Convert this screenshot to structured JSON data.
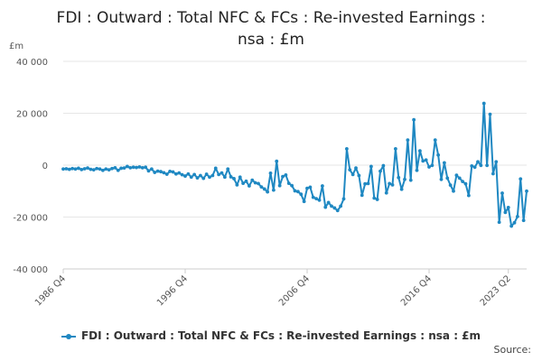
{
  "chart_data": {
    "type": "line",
    "title_line1": "FDI : Outward : Total NFC & FCs : Re-invested Earnings :",
    "title_line2": "nsa : £m",
    "unit_label": "£m",
    "ylim": [
      -40000,
      40000
    ],
    "y_ticks": [
      40000,
      20000,
      0,
      -20000,
      -40000
    ],
    "y_tick_labels": [
      "40 000",
      "20 000",
      "0",
      "-20 000",
      "-40 000"
    ],
    "x_ticks": [
      {
        "index": 0,
        "label": "1986 Q4"
      },
      {
        "index": 40,
        "label": "1996 Q4"
      },
      {
        "index": 80,
        "label": "2006 Q4"
      },
      {
        "index": 120,
        "label": "2016 Q4"
      },
      {
        "index": 146,
        "label": "2023 Q2"
      }
    ],
    "grid": true,
    "series": [
      {
        "name": "FDI : Outward : Total NFC & FCs : Re-invested Earnings : nsa : £m",
        "color": "#1f88c2",
        "start": "1986 Q4",
        "values": [
          -1500,
          -1400,
          -1600,
          -1300,
          -1500,
          -1200,
          -1700,
          -1400,
          -1100,
          -1600,
          -1800,
          -1300,
          -1500,
          -2000,
          -1500,
          -1800,
          -1300,
          -1000,
          -2000,
          -1200,
          -1100,
          -500,
          -1000,
          -800,
          -900,
          -700,
          -1000,
          -800,
          -2200,
          -1500,
          -2800,
          -2300,
          -2500,
          -2900,
          -3500,
          -2400,
          -2600,
          -3400,
          -3000,
          -3700,
          -4200,
          -3400,
          -4600,
          -3600,
          -4900,
          -4000,
          -5100,
          -3500,
          -4600,
          -4000,
          -1200,
          -3600,
          -3000,
          -4600,
          -1500,
          -4500,
          -5200,
          -7600,
          -4600,
          -7000,
          -6200,
          -8000,
          -5800,
          -6800,
          -7100,
          -8400,
          -9200,
          -10300,
          -3100,
          -9600,
          1500,
          -7900,
          -4400,
          -3800,
          -7000,
          -7900,
          -9900,
          -10200,
          -11200,
          -14000,
          -8900,
          -8500,
          -12400,
          -12900,
          -13500,
          -8000,
          -16200,
          -14400,
          -15800,
          -16500,
          -17500,
          -15800,
          -13000,
          6300,
          -1800,
          -3600,
          -1100,
          -4000,
          -11600,
          -7200,
          -7100,
          -500,
          -12700,
          -13200,
          -2300,
          -200,
          -10700,
          -7100,
          -7600,
          6300,
          -4800,
          -9300,
          -5500,
          9700,
          -5800,
          17500,
          -2000,
          5500,
          1600,
          2000,
          -700,
          -100,
          9700,
          3900,
          -5500,
          900,
          -5000,
          -7700,
          -10000,
          -3900,
          -5000,
          -6300,
          -7200,
          -11700,
          -300,
          -800,
          1300,
          -100,
          23800,
          -100,
          19600,
          -3300,
          1300,
          -22000,
          -10800,
          -18200,
          -16300,
          -23500,
          -22200,
          -19800,
          -5300,
          -21300,
          -10000
        ]
      }
    ]
  },
  "legend": {
    "label": "FDI : Outward : Total NFC & FCs : Re-invested Earnings : nsa : £m"
  },
  "footer": {
    "source_label": "Source:"
  }
}
